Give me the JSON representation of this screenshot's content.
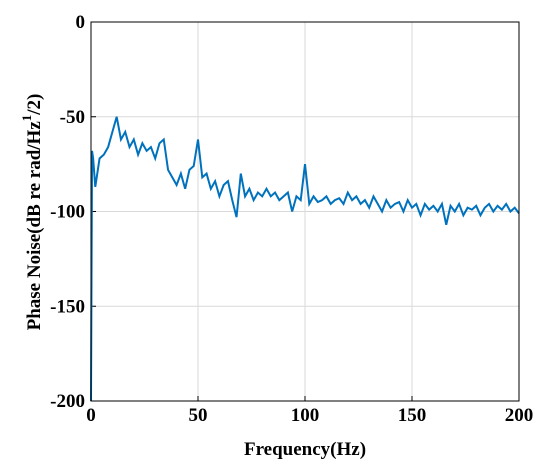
{
  "chart_data": {
    "type": "line",
    "xlabel": "Frequency(Hz)",
    "ylabel_main": "Phase Noise(dB re rad/Hz",
    "ylabel_sup": "1",
    "ylabel_end": "/2)",
    "xlim": [
      0,
      200
    ],
    "ylim": [
      -200,
      0
    ],
    "xticks": [
      0,
      50,
      100,
      150,
      200
    ],
    "yticks": [
      -200,
      -150,
      -100,
      -50,
      0
    ],
    "grid": true,
    "series": [
      {
        "color": "#0072bd",
        "x": [
          0,
          0.5,
          1,
          2,
          4,
          6,
          8,
          10,
          12,
          14,
          16,
          18,
          20,
          22,
          24,
          26,
          28,
          30,
          32,
          34,
          36,
          38,
          40,
          42,
          44,
          46,
          48,
          50,
          52,
          54,
          56,
          58,
          60,
          62,
          64,
          66,
          68,
          70,
          72,
          74,
          76,
          78,
          80,
          82,
          84,
          86,
          88,
          90,
          92,
          94,
          96,
          98,
          100,
          102,
          104,
          106,
          108,
          110,
          112,
          114,
          116,
          118,
          120,
          122,
          124,
          126,
          128,
          130,
          132,
          134,
          136,
          138,
          140,
          142,
          144,
          146,
          148,
          150,
          152,
          154,
          156,
          158,
          160,
          162,
          164,
          166,
          168,
          170,
          172,
          174,
          176,
          178,
          180,
          182,
          184,
          186,
          188,
          190,
          192,
          194,
          196,
          198,
          200
        ],
        "values": [
          -200,
          -68,
          -72,
          -87,
          -72,
          -70,
          -66,
          -58,
          -50,
          -62,
          -58,
          -66,
          -62,
          -70,
          -64,
          -68,
          -66,
          -72,
          -64,
          -62,
          -78,
          -82,
          -86,
          -80,
          -88,
          -78,
          -76,
          -62,
          -82,
          -80,
          -88,
          -84,
          -92,
          -86,
          -84,
          -94,
          -103,
          -80,
          -92,
          -88,
          -94,
          -90,
          -92,
          -88,
          -92,
          -90,
          -94,
          -92,
          -90,
          -100,
          -92,
          -94,
          -75,
          -96,
          -92,
          -95,
          -94,
          -92,
          -96,
          -94,
          -93,
          -96,
          -90,
          -94,
          -92,
          -96,
          -94,
          -98,
          -92,
          -96,
          -100,
          -94,
          -98,
          -96,
          -95,
          -100,
          -94,
          -98,
          -96,
          -102,
          -96,
          -99,
          -97,
          -100,
          -96,
          -107,
          -97,
          -100,
          -96,
          -102,
          -98,
          -99,
          -97,
          -102,
          -98,
          -96,
          -100,
          -97,
          -99,
          -96,
          -100,
          -98,
          -101
        ]
      }
    ]
  }
}
